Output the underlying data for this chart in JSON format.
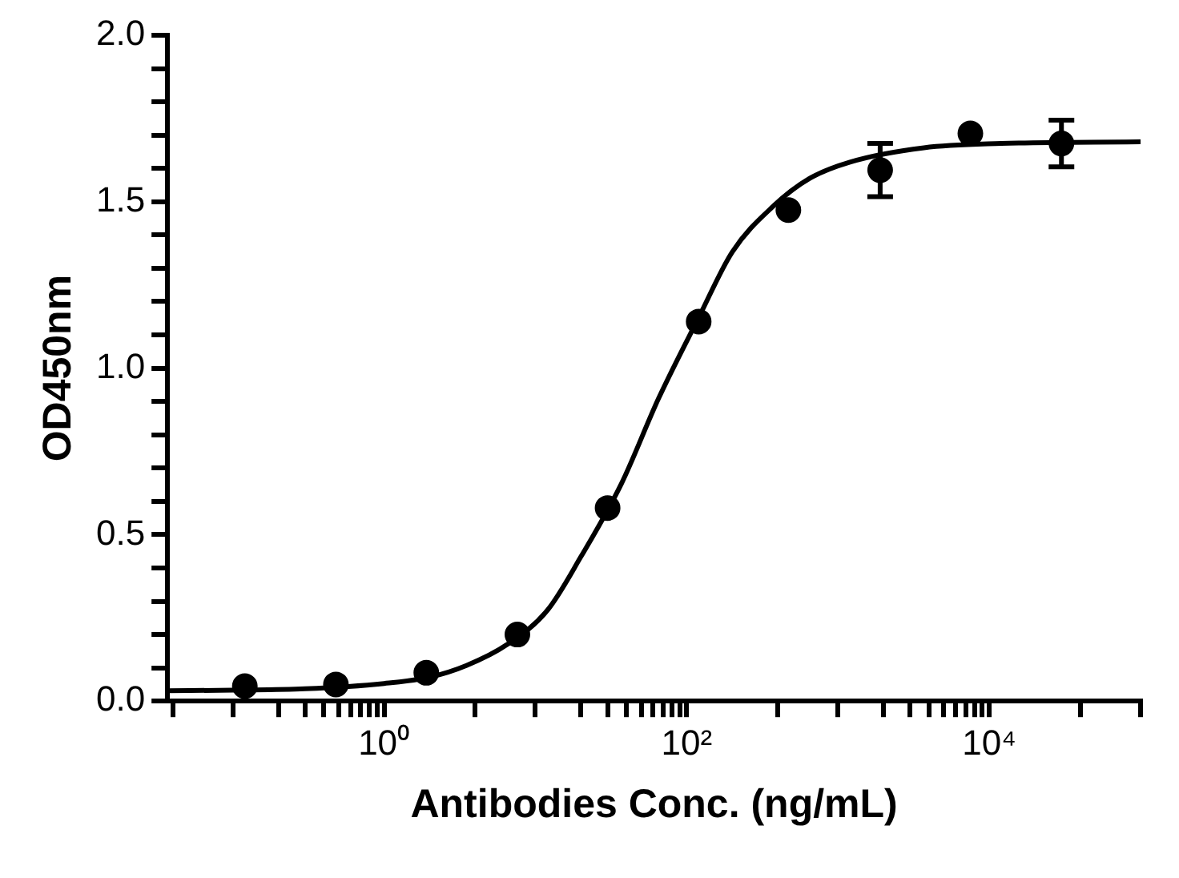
{
  "chart_data": {
    "type": "scatter",
    "xlabel": "Antibodies Conc. (ng/mL)",
    "ylabel": "OD450nm",
    "log": "x",
    "grid": false,
    "legend": false,
    "marker": "circle",
    "xlim": [
      0.037,
      100000
    ],
    "xticks": [
      {
        "value": 0.04,
        "label": null
      },
      {
        "value": 0.1,
        "label": null
      },
      {
        "value": 0.2,
        "label": null
      },
      {
        "value": 0.3,
        "label": null
      },
      {
        "value": 0.4,
        "label": null
      },
      {
        "value": 0.5,
        "label": null
      },
      {
        "value": 0.6,
        "label": null
      },
      {
        "value": 0.7,
        "label": null
      },
      {
        "value": 0.8,
        "label": null
      },
      {
        "value": 0.9,
        "label": null
      },
      {
        "value": 1,
        "label": "10⁰"
      },
      {
        "value": 4,
        "label": null
      },
      {
        "value": 10,
        "label": null
      },
      {
        "value": 20,
        "label": null
      },
      {
        "value": 30,
        "label": null
      },
      {
        "value": 40,
        "label": null
      },
      {
        "value": 50,
        "label": null
      },
      {
        "value": 60,
        "label": null
      },
      {
        "value": 70,
        "label": null
      },
      {
        "value": 80,
        "label": null
      },
      {
        "value": 90,
        "label": null
      },
      {
        "value": 100,
        "label": "10²"
      },
      {
        "value": 400,
        "label": null
      },
      {
        "value": 1000,
        "label": null
      },
      {
        "value": 2000,
        "label": null
      },
      {
        "value": 3000,
        "label": null
      },
      {
        "value": 4000,
        "label": null
      },
      {
        "value": 5000,
        "label": null
      },
      {
        "value": 6000,
        "label": null
      },
      {
        "value": 7000,
        "label": null
      },
      {
        "value": 8000,
        "label": null
      },
      {
        "value": 9000,
        "label": null
      },
      {
        "value": 10000,
        "label": "10⁴"
      },
      {
        "value": 40000,
        "label": null
      },
      {
        "value": 100000,
        "label": null
      }
    ],
    "ylim": [
      0,
      2
    ],
    "yticks": [
      {
        "value": 0,
        "label": "0.0"
      },
      {
        "value": 0.1,
        "label": null
      },
      {
        "value": 0.2,
        "label": null
      },
      {
        "value": 0.3,
        "label": null
      },
      {
        "value": 0.4,
        "label": null
      },
      {
        "value": 0.5,
        "label": "0.5"
      },
      {
        "value": 0.6,
        "label": null
      },
      {
        "value": 0.7,
        "label": null
      },
      {
        "value": 0.8,
        "label": null
      },
      {
        "value": 0.9,
        "label": null
      },
      {
        "value": 1,
        "label": "1.0"
      },
      {
        "value": 1.1,
        "label": null
      },
      {
        "value": 1.2,
        "label": null
      },
      {
        "value": 1.3,
        "label": null
      },
      {
        "value": 1.4,
        "label": null
      },
      {
        "value": 1.5,
        "label": "1.5"
      },
      {
        "value": 1.6,
        "label": null
      },
      {
        "value": 1.7,
        "label": null
      },
      {
        "value": 1.8,
        "label": null
      },
      {
        "value": 1.9,
        "label": null
      },
      {
        "value": 2,
        "label": "2.0"
      }
    ],
    "series": [
      {
        "type": "line",
        "marker": "none",
        "color": "#000000",
        "x": [
          0.037,
          0.1,
          0.3,
          1,
          2,
          3.5,
          6.5,
          12,
          20,
          37,
          65,
          120,
          200,
          370,
          650,
          1200,
          3700,
          12000,
          100000
        ],
        "values": [
          0.031,
          0.033,
          0.037,
          0.053,
          0.072,
          0.107,
          0.17,
          0.273,
          0.434,
          0.653,
          0.908,
          1.152,
          1.349,
          1.485,
          1.57,
          1.619,
          1.662,
          1.675,
          1.68
        ]
      },
      {
        "color": "#000000",
        "x": [
          0.12,
          0.48,
          1.9,
          7.6,
          30,
          120,
          470,
          1900,
          7500,
          30000
        ],
        "values": [
          0.045,
          0.05,
          0.085,
          0.2,
          0.58,
          1.14,
          1.475,
          1.595,
          1.705,
          1.675
        ],
        "errors": [
          null,
          null,
          null,
          null,
          null,
          null,
          null,
          0.08,
          null,
          0.07
        ]
      }
    ]
  }
}
